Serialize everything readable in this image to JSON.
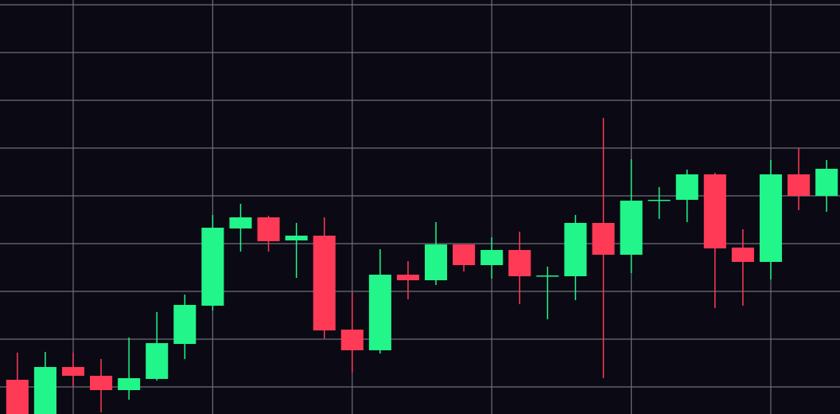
{
  "chart_data": {
    "type": "candlestick",
    "x": [
      0,
      1,
      2,
      3,
      4,
      5,
      6,
      7,
      8,
      9,
      10,
      11,
      12,
      13,
      14,
      15,
      16,
      17,
      18,
      19,
      20,
      21,
      22,
      23,
      24,
      25,
      26,
      27,
      28,
      29
    ],
    "open": [
      1.5,
      -6.5,
      4.17,
      2.33,
      -0.67,
      1.67,
      9,
      17,
      33.17,
      35.5,
      30.67,
      31.67,
      12,
      7.67,
      23.5,
      22.33,
      29.83,
      25.5,
      28.67,
      23.17,
      23.17,
      34.33,
      27.67,
      39,
      39.17,
      44.5,
      29.17,
      26.17,
      44.5,
      40
    ],
    "high": [
      7.17,
      7.33,
      7.17,
      5.83,
      10.33,
      15.67,
      19.33,
      36,
      38.33,
      35.83,
      34.33,
      35.5,
      19.83,
      28.83,
      26.33,
      34.5,
      29.83,
      31.33,
      32.5,
      25.17,
      36,
      56.33,
      47.67,
      41.83,
      45.5,
      44.83,
      33,
      47.5,
      50,
      47.5
    ],
    "low": [
      -7.33,
      -8,
      0.17,
      -5.33,
      -2.67,
      1.33,
      5.83,
      16,
      28.33,
      28.33,
      22.83,
      10.17,
      3,
      7,
      18.33,
      21.33,
      24.17,
      22.67,
      17.33,
      14.17,
      18.17,
      1.83,
      23.83,
      35.17,
      34.5,
      16.5,
      17,
      22.5,
      37,
      36.67
    ],
    "close": [
      -6,
      4.17,
      2.33,
      -0.67,
      1.83,
      9.17,
      17.17,
      33.33,
      35.5,
      30.5,
      31.67,
      11.83,
      7.67,
      23.5,
      22.33,
      29.83,
      25.5,
      28.67,
      23.17,
      23.33,
      34.33,
      27.67,
      39,
      39.17,
      44.5,
      29,
      26.17,
      44.5,
      40,
      45.67
    ],
    "up_color": "#22f589",
    "down_color": "#ff3a56",
    "xlim": [
      -0.6225,
      29.48
    ],
    "xticks": [
      2,
      7,
      12,
      17,
      22,
      27
    ],
    "ylim": [
      -5.67,
      81
    ],
    "yticks": [
      0,
      10,
      20,
      30,
      40,
      50,
      60,
      70,
      80
    ],
    "grid": true
  }
}
